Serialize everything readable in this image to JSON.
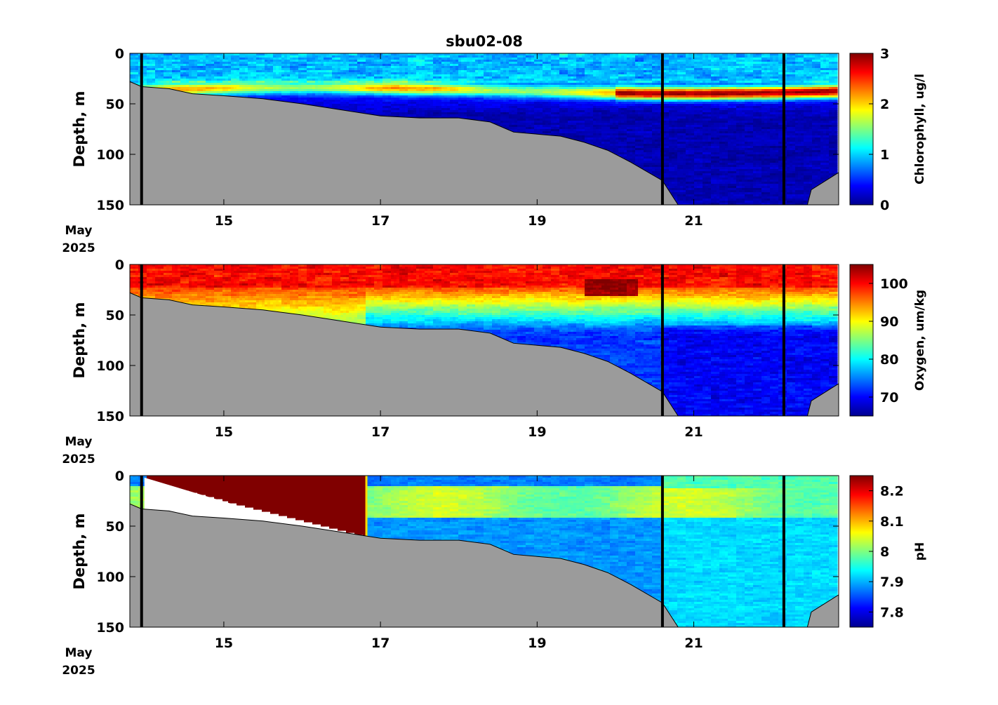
{
  "figure": {
    "title": "sbu02-08",
    "date_label": {
      "month": "May",
      "year": "2025"
    }
  },
  "chart_data": [
    {
      "type": "heatmap",
      "title": "sbu02-08",
      "ylabel": "Depth, m",
      "ylim": [
        150,
        0
      ],
      "yticks": [
        0,
        50,
        100,
        150
      ],
      "xlim": [
        13.8,
        22.85
      ],
      "xticks": [
        15,
        17,
        19,
        21
      ],
      "colorbar": {
        "label": "Chlorophyll, ug/l",
        "range": [
          0,
          3
        ],
        "ticks": [
          0,
          1,
          2,
          3
        ],
        "colormap": "jet"
      },
      "vertical_lines": [
        13.95,
        20.6,
        22.15
      ],
      "bottom_depth": [
        [
          13.8,
          28
        ],
        [
          13.95,
          33
        ],
        [
          14.3,
          35
        ],
        [
          14.6,
          40
        ],
        [
          15.0,
          42
        ],
        [
          15.5,
          45
        ],
        [
          16.0,
          50
        ],
        [
          16.5,
          56
        ],
        [
          17.0,
          62
        ],
        [
          17.5,
          64
        ],
        [
          18.0,
          64
        ],
        [
          18.4,
          68
        ],
        [
          18.7,
          78
        ],
        [
          19.0,
          80
        ],
        [
          19.3,
          82
        ],
        [
          19.6,
          88
        ],
        [
          19.9,
          96
        ],
        [
          20.2,
          108
        ],
        [
          20.6,
          126
        ],
        [
          20.8,
          150
        ],
        [
          22.45,
          150
        ],
        [
          22.5,
          135
        ],
        [
          22.85,
          118
        ]
      ],
      "data_extent": [
        [
          13.95,
          0
        ],
        [
          22.8,
          0
        ],
        [
          22.8,
          118
        ]
      ],
      "features": [
        {
          "x": [
            13.8,
            20.2
          ],
          "depth": [
            38,
            34
          ],
          "value": 1.3,
          "note": "chlorophyll maximum layer"
        },
        {
          "x": [
            20.2,
            22.8
          ],
          "depth": [
            34,
            37
          ],
          "value": 2.4,
          "note": "strong chlorophyll maximum"
        },
        {
          "x": [
            13.8,
            22.8
          ],
          "depth": [
            60,
            150
          ],
          "value": 0.2,
          "note": "deep low-chlorophyll water"
        },
        {
          "x": [
            13.8,
            22.8
          ],
          "depth": [
            0,
            12
          ],
          "value": 0.5,
          "note": "surface layer"
        }
      ]
    },
    {
      "type": "heatmap",
      "ylabel": "Depth, m",
      "ylim": [
        150,
        0
      ],
      "yticks": [
        0,
        50,
        100,
        150
      ],
      "xlim": [
        13.8,
        22.85
      ],
      "xticks": [
        15,
        17,
        19,
        21
      ],
      "colorbar": {
        "label": "Oxygen, um/kg",
        "range": [
          65,
          105
        ],
        "ticks": [
          70,
          80,
          90,
          100
        ],
        "colormap": "jet"
      },
      "vertical_lines": [
        13.95,
        20.6,
        22.15
      ],
      "features": [
        {
          "x": [
            13.8,
            22.8
          ],
          "depth": [
            0,
            25
          ],
          "value": 98,
          "note": "surface oxygen-rich water"
        },
        {
          "x": [
            19.6,
            20.3
          ],
          "depth": [
            15,
            30
          ],
          "value": 104,
          "note": "oxygen maximum"
        },
        {
          "x": [
            14.0,
            16.8
          ],
          "depth": [
            30,
            55
          ],
          "value": 84,
          "note": "mid-depth water"
        },
        {
          "x": [
            17.0,
            22.8
          ],
          "depth": [
            45,
            150
          ],
          "value": 70,
          "note": "low-oxygen deep water"
        }
      ]
    },
    {
      "type": "heatmap",
      "ylabel": "Depth, m",
      "ylim": [
        150,
        0
      ],
      "yticks": [
        0,
        50,
        100,
        150
      ],
      "xlim": [
        13.8,
        22.85
      ],
      "xticks": [
        15,
        17,
        19,
        21
      ],
      "colorbar": {
        "label": "pH",
        "range": [
          7.75,
          8.25
        ],
        "ticks": [
          7.8,
          7.9,
          8,
          8.1,
          8.2
        ],
        "tick_labels": [
          "7.8",
          "7.9",
          "8",
          "8.1",
          "8.2"
        ],
        "colormap": "jet"
      },
      "vertical_lines": [
        13.95,
        20.6,
        22.15
      ],
      "features": [
        {
          "x": [
            14.0,
            16.8
          ],
          "depth": [
            0,
            60
          ],
          "value": 8.25,
          "note": "saturated high-pH region"
        },
        {
          "x": [
            16.85,
            22.8
          ],
          "depth": [
            0,
            10
          ],
          "value": 7.88,
          "note": "surface"
        },
        {
          "x": [
            16.85,
            22.8
          ],
          "depth": [
            15,
            40
          ],
          "value": 8.0,
          "note": "pH maximum layer"
        },
        {
          "x": [
            16.85,
            22.8
          ],
          "depth": [
            45,
            150
          ],
          "value": 7.88,
          "note": "deep water"
        }
      ]
    }
  ]
}
